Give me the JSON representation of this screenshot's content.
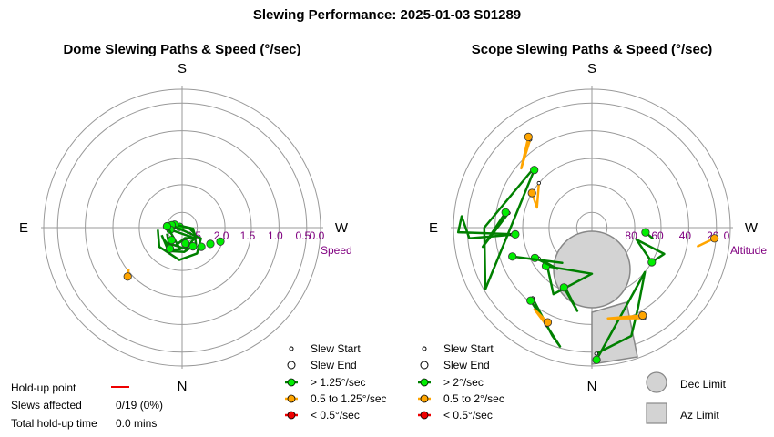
{
  "title": "Slewing Performance: 2025-01-03 S01289",
  "colors": {
    "fast": "#008000",
    "fast_marker": "#00ee00",
    "medium": "#ffa500",
    "slow": "#ee0000",
    "ring": "#999999",
    "limit_fill": "#d3d3d3",
    "label": "#800080"
  },
  "stats": {
    "holdup_label": "Hold-up point",
    "slews_label": "Slews affected",
    "slews_value": "0/19 (0%)",
    "total_label": "Total hold-up time",
    "total_value": "0.0 mins"
  },
  "dome": {
    "title": "Dome Slewing Paths & Speed (°/sec)",
    "compass": {
      "n": "N",
      "s": "S",
      "e": "E",
      "w": "W"
    },
    "ring_labels": [
      "2.5",
      "2.0",
      "1.5",
      "1.0",
      "0.5",
      "0.0"
    ],
    "axis_name": "Speed",
    "legend": [
      "Slew Start",
      "Slew End",
      "> 1.25°/sec",
      "0.5 to 1.25°/sec",
      "< 0.5°/sec"
    ]
  },
  "scope": {
    "title": "Scope Slewing Paths & Speed (°/sec)",
    "compass": {
      "n": "N",
      "s": "S",
      "e": "E",
      "w": "W"
    },
    "ring_labels": [
      "80",
      "60",
      "40",
      "20",
      "0"
    ],
    "axis_name": "Altitude",
    "legend": [
      "Slew Start",
      "Slew End",
      "> 2°/sec",
      "0.5 to 2°/sec",
      "< 0.5°/sec"
    ],
    "limits": [
      "Dec Limit",
      "Az Limit"
    ]
  },
  "chart_data": [
    {
      "type": "scatter",
      "title": "Dome Slewing Paths & Speed (°/sec)",
      "coordinate_system": "polar (azimuth, speed)",
      "radial_axis": {
        "label": "Speed",
        "range": [
          2.5,
          0.0
        ],
        "ticks": [
          2.5,
          2.0,
          1.5,
          1.0,
          0.5,
          0.0
        ]
      },
      "series": [
        {
          "name": "> 1.25°/sec",
          "color": "#008000",
          "slews": [
            {
              "end": [
                -72,
                2.45
              ],
              "path": [
                [
                  -110,
                  2.1
                ],
                [
                  -150,
                  2.0
                ],
                [
                  175,
                  2.05
                ],
                [
                  140,
                  2.1
                ],
                [
                  115,
                  2.25
                ],
                [
                  100,
                  2.35
                ],
                [
                  85,
                  2.42
                ],
                [
                  -72,
                  2.45
                ]
              ]
            },
            {
              "end": [
                -68,
                2.35
              ],
              "path": [
                [
                  -112,
                  2.2
                ],
                [
                  -140,
                  2.12
                ],
                [
                  170,
                  2.1
                ],
                [
                  125,
                  2.2
                ],
                [
                  95,
                  2.3
                ],
                [
                  -68,
                  2.35
                ]
              ]
            },
            {
              "end": [
                -77,
                2.3
              ],
              "path": [
                [
                  -95,
                  2.05
                ],
                [
                  -130,
                  1.95
                ],
                [
                  -175,
                  1.9
                ],
                [
                  150,
                  1.95
                ],
                [
                  120,
                  2.1
                ],
                [
                  -77,
                  2.3
                ]
              ]
            },
            {
              "end": [
                -100,
                2.28
              ],
              "path": [
                [
                  -160,
                  2.15
                ],
                [
                  165,
                  2.3
                ],
                [
                  130,
                  2.2
                ],
                [
                  -100,
                  2.28
                ]
              ]
            },
            {
              "end": [
                -85,
                2.22
              ],
              "path": [
                [
                  -125,
                  2.1
                ],
                [
                  -155,
                  2.05
                ],
                [
                  -175,
                  2.1
                ],
                [
                  -85,
                  2.22
                ]
              ]
            }
          ],
          "isolated_points": [
            {
              "az": 110,
              "speed": 1.75
            },
            {
              "az": 120,
              "speed": 1.9
            },
            {
              "az": 135,
              "speed": 2.0
            },
            {
              "az": 150,
              "speed": 2.1
            },
            {
              "az": 168,
              "speed": 2.2
            },
            {
              "az": -150,
              "speed": 2.05
            },
            {
              "az": -140,
              "speed": 2.2
            }
          ]
        },
        {
          "name": "0.5 to 1.25°/sec",
          "color": "#ffa500",
          "slews": [
            {
              "end": [
                -132,
                1.15
              ],
              "path": [
                [
                  -128,
                  1.25
                ],
                [
                  -132,
                  1.15
                ]
              ]
            }
          ]
        },
        {
          "name": "< 0.5°/sec",
          "color": "#ee0000",
          "slews": []
        }
      ]
    },
    {
      "type": "scatter",
      "title": "Scope Slewing Paths & Speed (°/sec)",
      "coordinate_system": "polar (azimuth, altitude)",
      "radial_axis": {
        "label": "Altitude",
        "range": [
          90,
          0
        ],
        "ticks": [
          80,
          60,
          40,
          20,
          0
        ]
      },
      "series": [
        {
          "name": "> 2°/sec",
          "color": "#008000",
          "slews": [
            {
              "start": [
                -95,
                38
              ],
              "end": [
                -95,
                40
              ],
              "path": [
                [
                  -95,
                  38
                ],
                [
                  -95,
                  25
                ],
                [
                  -95,
                  10
                ],
                [
                  -85,
                  5
                ],
                [
                  -92,
                  3
                ],
                [
                  -95,
                  40
                ]
              ]
            },
            {
              "start": [
                -140,
                30
              ],
              "end": [
                -140,
                28
              ],
              "path": [
                [
                  -140,
                  30
                ],
                [
                  -160,
                  15
                ],
                [
                  -165,
                  10
                ],
                [
                  -140,
                  28
                ]
              ]
            },
            {
              "start": [
                -80,
                35
              ],
              "end": [
                -80,
                33
              ],
              "path": [
                [
                  -80,
                  35
                ],
                [
                  -100,
                  18
                ],
                [
                  -80,
                  33
                ]
              ]
            },
            {
              "start": [
                -45,
                36
              ],
              "end": [
                -45,
                37
              ],
              "path": [
                [
                  -45,
                  36
                ],
                [
                  -90,
                  20
                ],
                [
                  -120,
                  10
                ],
                [
                  -45,
                  37
                ]
              ]
            },
            {
              "start": [
                178,
                8
              ],
              "end": [
                178,
                4
              ],
              "path": [
                [
                  178,
                  8
                ],
                [
                  160,
                  15
                ],
                [
                  150,
                  30
                ],
                [
                  130,
                  45
                ],
                [
                  178,
                  4
                ]
              ]
            },
            {
              "start": [
                -130,
                52
              ],
              "end": [
                -130,
                51
              ],
              "path": [
                [
                  -130,
                  52
                ],
                [
                  -150,
                  40
                ],
                [
                  -180,
                  60
                ],
                [
                  -130,
                  51
                ]
              ]
            },
            {
              "start": [
                -155,
                48
              ],
              "end": [
                -155,
                47
              ],
              "path": [
                [
                  -155,
                  48
                ],
                [
                  -170,
                  35
                ],
                [
                  -155,
                  47
                ]
              ]
            },
            {
              "start": [
                -120,
                50
              ],
              "end": [
                -118,
                48
              ],
              "path": [
                [
                  -120,
                  50
                ],
                [
                  -140,
                  55
                ],
                [
                  -118,
                  48
                ]
              ]
            },
            {
              "start": [
                120,
                45
              ],
              "end": [
                120,
                45
              ],
              "path": [
                [
                  120,
                  45
                ],
                [
                  110,
                  40
                ],
                [
                  105,
                  60
                ],
                [
                  120,
                  45
                ]
              ]
            },
            {
              "start": [
                95,
                55
              ],
              "end": [
                95,
                55
              ],
              "path": [
                [
                  95,
                  55
                ],
                [
                  100,
                  50
                ],
                [
                  95,
                  55
                ]
              ]
            },
            {
              "start": [
                -110,
                35
              ],
              "end": [
                -110,
                35
              ],
              "path": [
                [
                  -110,
                  35
                ],
                [
                  -140,
                  60
                ],
                [
                  -110,
                  35
                ]
              ]
            }
          ]
        },
        {
          "name": "0.5 to 2°/sec",
          "color": "#ffa500",
          "slews": [
            {
              "start": [
                150,
                22
              ],
              "end": [
                150,
                24
              ],
              "path": [
                [
                  150,
                  22
                ],
                [
                  170,
                  30
                ],
                [
                  150,
                  24
                ]
              ]
            },
            {
              "start": [
                -155,
                20
              ],
              "end": [
                -155,
                22
              ],
              "path": [
                [
                  -155,
                  20
                ],
                [
                  -145,
                  25
                ],
                [
                  -155,
                  22
                ]
              ]
            },
            {
              "start": [
                -50,
                45
              ],
              "end": [
                -60,
                45
              ],
              "path": [
                [
                  -50,
                  45
                ],
                [
                  -70,
                  52
                ],
                [
                  -60,
                  45
                ]
              ]
            },
            {
              "start": [
                -35,
                20
              ],
              "end": [
                -35,
                18
              ],
              "path": [
                [
                  -35,
                  20
                ],
                [
                  -50,
                  30
                ],
                [
                  -35,
                  18
                ]
              ]
            },
            {
              "start": [
                95,
                10
              ],
              "end": [
                95,
                10
              ],
              "path": [
                [
                  95,
                  10
                ],
                [
                  100,
                  20
                ],
                [
                  95,
                  10
                ]
              ]
            }
          ]
        },
        {
          "name": "< 0.5°/sec",
          "color": "#ee0000",
          "slews": []
        }
      ],
      "limits": {
        "dec_limit": "circle below pole",
        "az_limit": "wedge toward N"
      }
    }
  ]
}
